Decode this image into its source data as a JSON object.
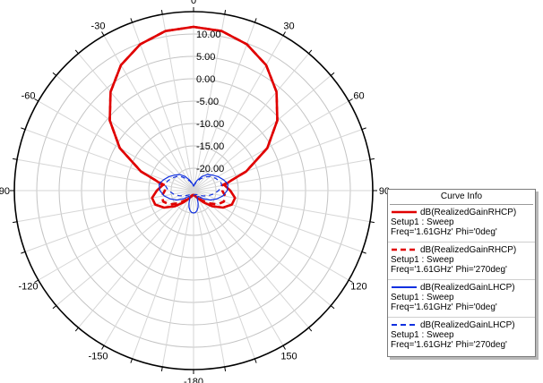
{
  "chart_data": {
    "type": "polar",
    "radial_axis": {
      "rmin": -25,
      "rmax": 15,
      "ticks": [
        "10.00",
        "5.00",
        "0.00",
        "-5.00",
        "-10.00",
        "-15.00",
        "-20.00"
      ]
    },
    "angular_axis": {
      "zero_direction": "top",
      "labels": [
        "0",
        "30",
        "60",
        "90",
        "120",
        "150",
        "-180",
        "-150",
        "-120",
        "-90",
        "-60",
        "-30"
      ]
    },
    "grid": true,
    "legend": {
      "title": "Curve Info",
      "placement": "right"
    },
    "series": [
      {
        "name": "dB(RealizedGainRHCP)",
        "setup": "Setup1 : Sweep",
        "freq": "Freq='1.61GHz' Phi='0deg'",
        "color": "#e00000",
        "dash": "solid",
        "theta": [
          0,
          10,
          20,
          30,
          40,
          50,
          60,
          70,
          75,
          80,
          90,
          100,
          110,
          120,
          130,
          140,
          150,
          160,
          170,
          180
        ],
        "r_db": [
          11.6,
          11.2,
          9.8,
          7.4,
          3.8,
          -0.6,
          -6.0,
          -12.5,
          -16.3,
          -18.0,
          -16.8,
          -15.6,
          -15.9,
          -17.4,
          -19.6,
          -21.6,
          -23.0,
          -23.6,
          -23.9,
          -24.0
        ]
      },
      {
        "name": "dB(RealizedGainRHCP)",
        "setup": "Setup1 : Sweep",
        "freq": "Freq='1.61GHz' Phi='270deg'",
        "color": "#e00000",
        "dash": "dashed",
        "theta": [
          0,
          10,
          20,
          30,
          40,
          50,
          60,
          70,
          75,
          80,
          90,
          100,
          110,
          120,
          130,
          140,
          150,
          160,
          170,
          180
        ],
        "r_db": [
          11.6,
          11.2,
          9.8,
          7.4,
          3.8,
          -0.6,
          -6.0,
          -12.5,
          -16.3,
          -18.6,
          -18.6,
          -17.8,
          -17.8,
          -18.8,
          -20.6,
          -22.2,
          -23.3,
          -23.8,
          -24.0,
          -24.0
        ]
      },
      {
        "name": "dB(RealizedGainLHCP)",
        "setup": "Setup1 : Sweep",
        "freq": "Freq='1.61GHz' Phi='0deg'",
        "color": "#1030e0",
        "dash": "solid",
        "theta": [
          0,
          10,
          20,
          30,
          40,
          50,
          60,
          70,
          75,
          80,
          90,
          100,
          110,
          120,
          130,
          140,
          150,
          160,
          165,
          170,
          175,
          180
        ],
        "r_db": [
          -24.0,
          -23.4,
          -22.5,
          -21.4,
          -20.3,
          -19.6,
          -18.7,
          -17.9,
          -17.5,
          -17.2,
          -17.5,
          -18.3,
          -19.5,
          -20.8,
          -22.2,
          -23.3,
          -23.4,
          -22.0,
          -21.1,
          -20.5,
          -20.1,
          -20.0
        ]
      },
      {
        "name": "dB(RealizedGainLHCP)",
        "setup": "Setup1 : Sweep",
        "freq": "Freq='1.61GHz' Phi='270deg'",
        "color": "#1030e0",
        "dash": "dashed",
        "theta": [
          0,
          10,
          20,
          30,
          40,
          50,
          60,
          70,
          75,
          80,
          90,
          100,
          110,
          120,
          130,
          140,
          150,
          160,
          170,
          180
        ],
        "r_db": [
          -24.0,
          -23.6,
          -22.8,
          -22.0,
          -21.0,
          -20.1,
          -19.4,
          -18.8,
          -18.6,
          -18.6,
          -19.4,
          -20.5,
          -21.6,
          -22.6,
          -23.4,
          -23.8,
          -24.0,
          -24.0,
          -24.0,
          -24.0
        ]
      }
    ]
  }
}
